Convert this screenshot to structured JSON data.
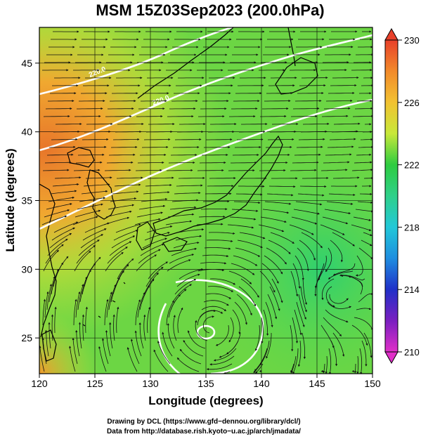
{
  "title": "MSM 15Z03Sep2023 (200.0hPa)",
  "map": {
    "x_axis": {
      "label": "Longitude (degrees)",
      "range": [
        120,
        150
      ],
      "ticks": [
        "120",
        "125",
        "130",
        "135",
        "140",
        "145",
        "150"
      ]
    },
    "y_axis": {
      "label": "Latitude  (degrees)",
      "range": [
        22.4,
        47.6
      ],
      "ticks": [
        "25",
        "30",
        "35",
        "40",
        "45"
      ]
    },
    "grid": true,
    "grid_spacing_deg": 5,
    "field": "temperature (K)",
    "streamlines": "wind field",
    "contours": {
      "color": "#ffffff",
      "labels": [
        "220.0",
        "220.0"
      ]
    },
    "typhoon_center": {
      "lon": 135.5,
      "lat": 25.8
    }
  },
  "colorbar": {
    "ticks": [
      "230",
      "226",
      "222",
      "218",
      "214",
      "210"
    ],
    "range": [
      210,
      230
    ],
    "colors": {
      "230": "#e8402a",
      "226": "#f2c232",
      "224": "#c8e83a",
      "222": "#2ecc40",
      "220": "#2fd08a",
      "218": "#22c8d8",
      "216": "#1f8ee0",
      "214": "#2030c8",
      "212": "#7a1fc0",
      "210": "#e030c8"
    }
  },
  "credits": {
    "line1": "Drawing by DCL (https://www.gfd−dennou.org/library/dcl/)",
    "line2": "Data from http://database.rish.kyoto−u.ac.jp/arch/jmadata/"
  }
}
